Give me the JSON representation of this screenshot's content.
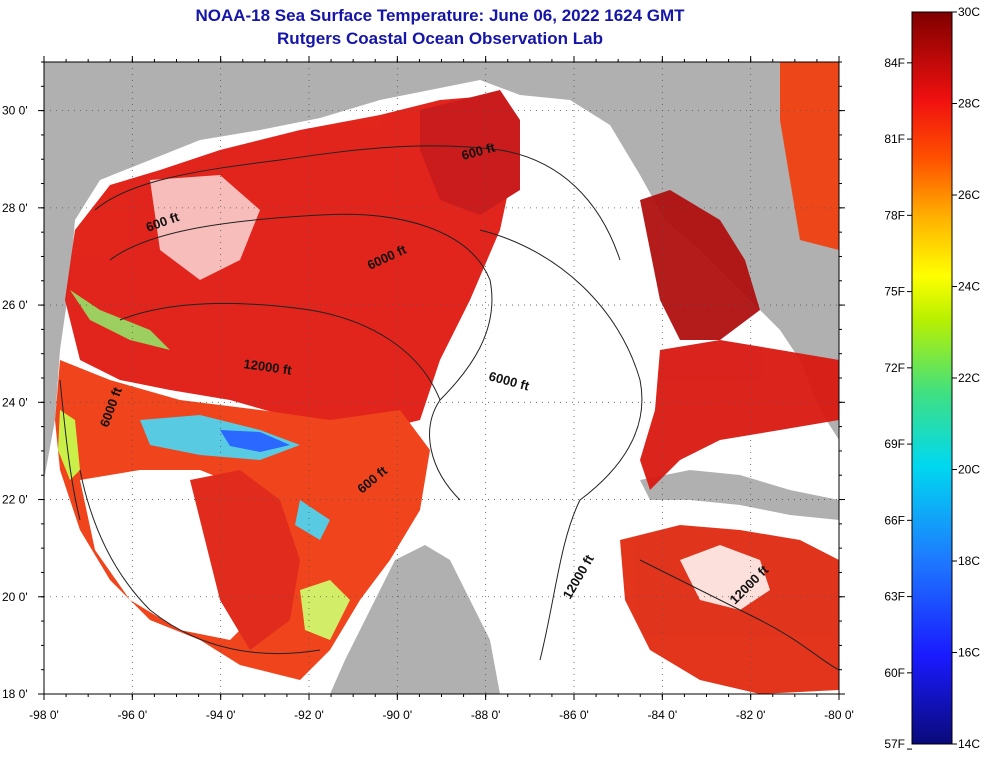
{
  "title": {
    "line1": "NOAA-18 Sea Surface Temperature:  June 06, 2022 1624 GMT",
    "line2": "Rutgers Coastal Ocean Observation Lab"
  },
  "map": {
    "lon_ticks": [
      "-98 0'",
      "-96 0'",
      "-94 0'",
      "-92 0'",
      "-90 0'",
      "-88 0'",
      "-86 0'",
      "-84 0'",
      "-82 0'",
      "-80 0'"
    ],
    "lat_ticks": [
      "30 0'",
      "28 0'",
      "26 0'",
      "24 0'",
      "22 0'",
      "20 0'",
      "18 0'"
    ],
    "lon_range": [
      -98,
      -80
    ],
    "lat_range": [
      18,
      31
    ],
    "land_color": "#b0b0b0",
    "nodata_color": "#ffffff",
    "contour_labels": [
      "600 ft",
      "600 ft",
      "6000 ft",
      "12000 ft",
      "6000 ft",
      "6000 ft",
      "600 ft",
      "12000 ft",
      "12000 ft"
    ]
  },
  "colorbar": {
    "celsius": [
      "30C",
      "28C",
      "26C",
      "24C",
      "22C",
      "20C",
      "18C",
      "16C",
      "14C"
    ],
    "fahrenheit": [
      "84F",
      "81F",
      "78F",
      "75F",
      "72F",
      "69F",
      "66F",
      "63F",
      "60F",
      "57F"
    ],
    "range_c": [
      14,
      30
    ]
  }
}
